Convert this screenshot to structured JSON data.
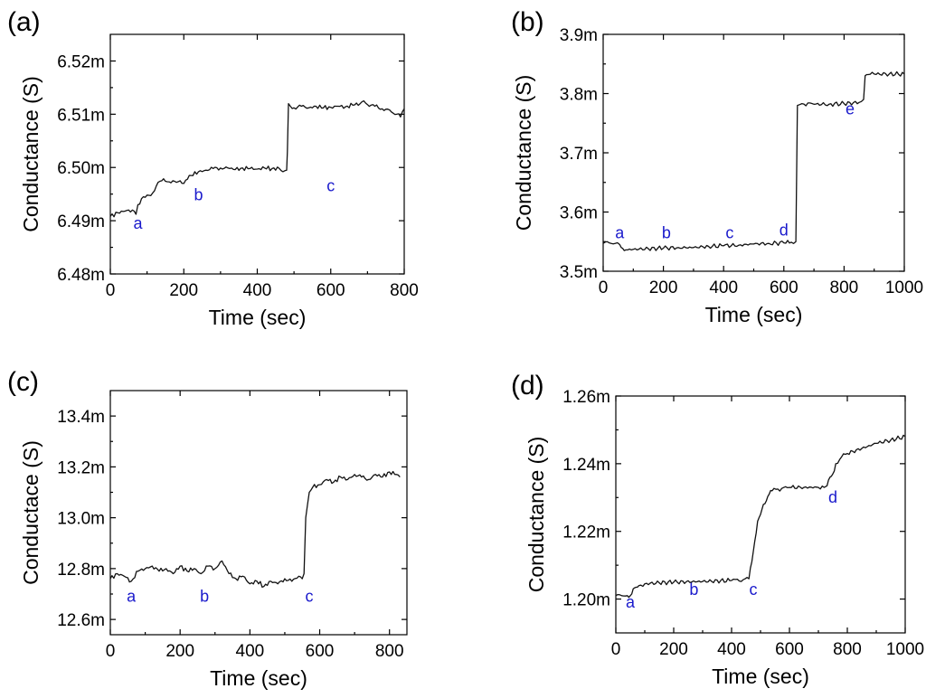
{
  "chart_data": [
    {
      "type": "line",
      "panel_label": "(a)",
      "xlabel": "Time (sec)",
      "ylabel": "Conductance (S)",
      "xlim": [
        0,
        800
      ],
      "ylim": [
        6.48,
        6.525
      ],
      "xticks": [
        0,
        200,
        400,
        600,
        800
      ],
      "xtick_labels": [
        "0",
        "200",
        "400",
        "600",
        "800"
      ],
      "yticks": [
        6.48,
        6.49,
        6.5,
        6.51,
        6.52
      ],
      "ytick_labels": [
        "6.48m",
        "6.49m",
        "6.50m",
        "6.51m",
        "6.52m"
      ],
      "series": [
        {
          "name": "conductance",
          "x": [
            0,
            20,
            40,
            60,
            65,
            70,
            75,
            90,
            100,
            110,
            120,
            125,
            130,
            140,
            150,
            160,
            170,
            180,
            190,
            200,
            210,
            220,
            240,
            260,
            280,
            300,
            320,
            340,
            360,
            380,
            400,
            420,
            440,
            460,
            470,
            480,
            482,
            485,
            490,
            500,
            520,
            540,
            560,
            580,
            600,
            620,
            640,
            660,
            680,
            690,
            700,
            720,
            740,
            760,
            770,
            780,
            790,
            800
          ],
          "y": [
            6.4908,
            6.4915,
            6.4918,
            6.492,
            6.4918,
            6.4912,
            6.493,
            6.4945,
            6.4948,
            6.4947,
            6.4956,
            6.4965,
            6.4972,
            6.4975,
            6.4974,
            6.4973,
            6.4975,
            6.4972,
            6.4975,
            6.497,
            6.4978,
            6.4985,
            6.4992,
            6.4995,
            6.4998,
            6.4999,
            6.4999,
            6.4996,
            6.4999,
            6.4998,
            6.4997,
            6.4999,
            6.4998,
            6.4998,
            6.4992,
            6.4995,
            6.503,
            6.512,
            6.5115,
            6.5112,
            6.5115,
            6.5112,
            6.5115,
            6.5112,
            6.5113,
            6.5115,
            6.5114,
            6.5117,
            6.512,
            6.5125,
            6.5118,
            6.5115,
            6.511,
            6.5108,
            6.5102,
            6.51,
            6.5095,
            6.511
          ]
        }
      ],
      "annotations": [
        {
          "text": "a",
          "x": 75,
          "y": 6.4885
        },
        {
          "text": "b",
          "x": 240,
          "y": 6.4938
        },
        {
          "text": "c",
          "x": 600,
          "y": 6.4955
        }
      ]
    },
    {
      "type": "line",
      "panel_label": "(b)",
      "xlabel": "Time (sec)",
      "ylabel": "Conductance (S)",
      "xlim": [
        0,
        1000
      ],
      "ylim": [
        3.5,
        3.9
      ],
      "xticks": [
        0,
        200,
        400,
        600,
        800,
        1000
      ],
      "xtick_labels": [
        "0",
        "200",
        "400",
        "600",
        "800",
        "1000"
      ],
      "yticks": [
        3.5,
        3.6,
        3.7,
        3.8,
        3.9
      ],
      "ytick_labels": [
        "3.5m",
        "3.6m",
        "3.7m",
        "3.8m",
        "3.9m"
      ],
      "series": [
        {
          "name": "conductance",
          "x": [
            0,
            20,
            40,
            55,
            60,
            70,
            75,
            100,
            150,
            200,
            250,
            300,
            350,
            400,
            450,
            500,
            550,
            600,
            625,
            640,
            645,
            660,
            700,
            750,
            800,
            850,
            865,
            870,
            880,
            900,
            950,
            1000
          ],
          "y": [
            3.547,
            3.548,
            3.547,
            3.545,
            3.54,
            3.535,
            3.536,
            3.537,
            3.538,
            3.539,
            3.54,
            3.54,
            3.542,
            3.543,
            3.544,
            3.546,
            3.547,
            3.548,
            3.549,
            3.55,
            3.78,
            3.783,
            3.782,
            3.782,
            3.783,
            3.785,
            3.79,
            3.83,
            3.832,
            3.833,
            3.833,
            3.833
          ]
        }
      ],
      "annotations": [
        {
          "text": "a",
          "x": 55,
          "y": 3.556
        },
        {
          "text": "b",
          "x": 210,
          "y": 3.556
        },
        {
          "text": "c",
          "x": 420,
          "y": 3.556
        },
        {
          "text": "d",
          "x": 600,
          "y": 3.56
        },
        {
          "text": "e",
          "x": 820,
          "y": 3.765
        }
      ]
    },
    {
      "type": "line",
      "panel_label": "(c)",
      "xlabel": "Time (sec)",
      "ylabel": "Conductace (S)",
      "xlim": [
        0,
        850
      ],
      "ylim": [
        12.54,
        13.5
      ],
      "xticks": [
        0,
        200,
        400,
        600,
        800
      ],
      "xtick_labels": [
        "0",
        "200",
        "400",
        "600",
        "800"
      ],
      "yticks": [
        12.6,
        12.8,
        13.0,
        13.2,
        13.4
      ],
      "ytick_labels": [
        "12.6m",
        "12.8m",
        "13.0m",
        "13.2m",
        "13.4m"
      ],
      "series": [
        {
          "name": "conductance",
          "x": [
            0,
            20,
            40,
            60,
            80,
            100,
            120,
            140,
            160,
            180,
            200,
            220,
            240,
            260,
            280,
            300,
            320,
            340,
            360,
            380,
            400,
            420,
            440,
            460,
            480,
            500,
            520,
            540,
            550,
            555,
            560,
            565,
            570,
            580,
            600,
            620,
            640,
            660,
            680,
            700,
            720,
            740,
            760,
            780,
            800,
            820,
            830
          ],
          "y": [
            12.76,
            12.78,
            12.77,
            12.75,
            12.79,
            12.8,
            12.81,
            12.79,
            12.8,
            12.78,
            12.81,
            12.79,
            12.8,
            12.78,
            12.81,
            12.8,
            12.83,
            12.78,
            12.76,
            12.77,
            12.74,
            12.75,
            12.73,
            12.75,
            12.74,
            12.76,
            12.75,
            12.77,
            12.76,
            12.78,
            13.0,
            13.05,
            13.1,
            13.12,
            13.13,
            13.15,
            13.14,
            13.16,
            13.15,
            13.17,
            13.16,
            13.15,
            13.17,
            13.16,
            13.18,
            13.17,
            13.16
          ]
        }
      ],
      "annotations": [
        {
          "text": "a",
          "x": 60,
          "y": 12.67
        },
        {
          "text": "b",
          "x": 270,
          "y": 12.67
        },
        {
          "text": "c",
          "x": 570,
          "y": 12.67
        }
      ]
    },
    {
      "type": "line",
      "panel_label": "(d)",
      "xlabel": "Time (sec)",
      "ylabel": "Conductance (S)",
      "xlim": [
        0,
        1000
      ],
      "ylim": [
        1.19,
        1.26
      ],
      "xticks": [
        0,
        200,
        400,
        600,
        800,
        1000
      ],
      "xtick_labels": [
        "0",
        "200",
        "400",
        "600",
        "800",
        "1000"
      ],
      "yticks": [
        1.2,
        1.22,
        1.24,
        1.26
      ],
      "ytick_labels": [
        "1.20m",
        "1.22m",
        "1.24m",
        "1.26m"
      ],
      "series": [
        {
          "name": "conductance",
          "x": [
            0,
            20,
            40,
            50,
            55,
            60,
            70,
            80,
            100,
            150,
            200,
            300,
            400,
            440,
            460,
            470,
            480,
            490,
            500,
            510,
            520,
            530,
            540,
            560,
            600,
            650,
            700,
            720,
            730,
            740,
            750,
            760,
            780,
            800,
            850,
            900,
            950,
            1000
          ],
          "y": [
            1.201,
            1.201,
            1.201,
            1.201,
            1.2015,
            1.203,
            1.2035,
            1.204,
            1.2045,
            1.2048,
            1.205,
            1.2052,
            1.2055,
            1.2057,
            1.206,
            1.211,
            1.217,
            1.223,
            1.225,
            1.228,
            1.229,
            1.231,
            1.232,
            1.2325,
            1.233,
            1.233,
            1.233,
            1.233,
            1.2335,
            1.236,
            1.237,
            1.24,
            1.242,
            1.243,
            1.2445,
            1.246,
            1.247,
            1.248
          ]
        }
      ],
      "annotations": [
        {
          "text": "a",
          "x": 50,
          "y": 1.1975
        },
        {
          "text": "b",
          "x": 270,
          "y": 1.2012
        },
        {
          "text": "c",
          "x": 475,
          "y": 1.2012
        },
        {
          "text": "d",
          "x": 750,
          "y": 1.2285
        }
      ]
    }
  ]
}
